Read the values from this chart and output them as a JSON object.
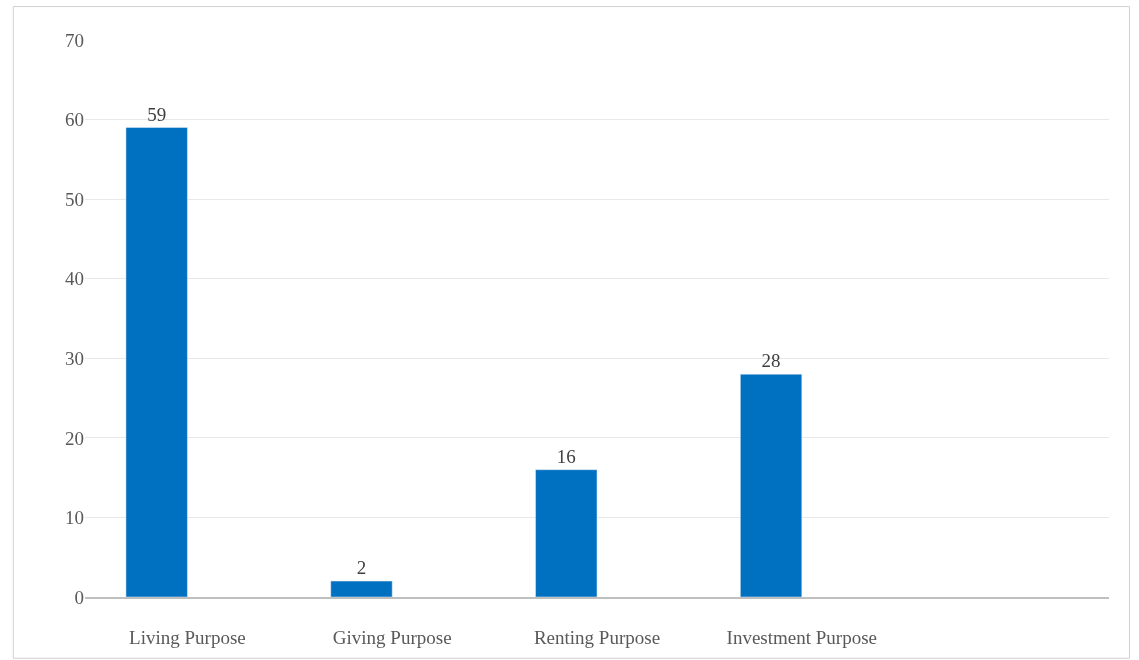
{
  "chart_data": {
    "type": "bar",
    "categories": [
      "Living Purpose",
      "Giving Purpose",
      "Renting Purpose",
      "Investment Purpose",
      null
    ],
    "series": [
      {
        "color": "#0070c0",
        "values": [
          59,
          2,
          16,
          28,
          null
        ]
      },
      {
        "values": [
          null,
          null,
          null,
          null,
          null
        ]
      }
    ],
    "ylim": [
      0,
      70
    ],
    "yticks": [
      0,
      10,
      20,
      30,
      40,
      50,
      60,
      70
    ],
    "grid": "y",
    "data_labels": true
  }
}
